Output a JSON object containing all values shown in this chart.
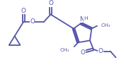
{
  "bg_color": "#ffffff",
  "line_color": "#5555aa",
  "line_width": 1.3,
  "figsize": [
    1.68,
    1.02
  ],
  "dpi": 100,
  "font_size": 5.8,
  "text_color": "#5555aa",
  "xlim": [
    0,
    168
  ],
  "ylim": [
    0,
    102
  ]
}
